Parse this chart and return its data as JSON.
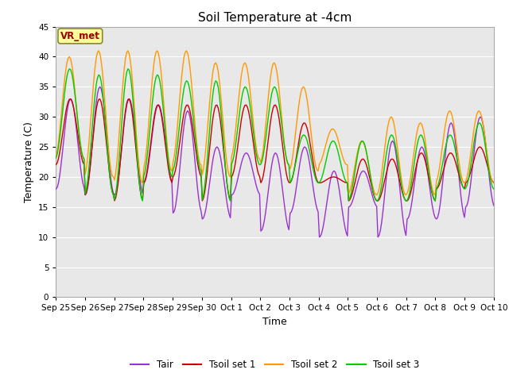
{
  "title": "Soil Temperature at -4cm",
  "xlabel": "Time",
  "ylabel": "Temperature (C)",
  "ylim": [
    0,
    45
  ],
  "yticks": [
    0,
    5,
    10,
    15,
    20,
    25,
    30,
    35,
    40,
    45
  ],
  "xtick_labels": [
    "Sep 25",
    "Sep 26",
    "Sep 27",
    "Sep 28",
    "Sep 29",
    "Sep 30",
    "Oct 1",
    "Oct 2",
    "Oct 3",
    "Oct 4",
    "Oct 5",
    "Oct 6",
    "Oct 7",
    "Oct 8",
    "Oct 9",
    "Oct 10"
  ],
  "fig_bg_color": "#ffffff",
  "plot_bg_color": "#e8e8e8",
  "grid_color": "#ffffff",
  "annotation_text": "VR_met",
  "annotation_bg": "#ffff99",
  "annotation_border": "#888833",
  "annotation_text_color": "#990000",
  "colors": {
    "Tair": "#9933cc",
    "Tsoil_set1": "#cc0000",
    "Tsoil_set2": "#ff9900",
    "Tsoil_set3": "#00cc00"
  },
  "legend_labels": [
    "Tair",
    "Tsoil set 1",
    "Tsoil set 2",
    "Tsoil set 3"
  ],
  "n_days": 15,
  "hours_per_day": 24,
  "tair_peaks": [
    33,
    35,
    33,
    32,
    31,
    25,
    24,
    24,
    25,
    21,
    21,
    26,
    25,
    29,
    30
  ],
  "tair_valleys": [
    18,
    17,
    17,
    19,
    14,
    13,
    17,
    11,
    14,
    10,
    15,
    10,
    13,
    13,
    15
  ],
  "tsoil1_peaks": [
    33,
    33,
    33,
    32,
    32,
    32,
    32,
    32,
    29,
    20,
    23,
    23,
    24,
    24,
    25
  ],
  "tsoil1_valleys": [
    22,
    17,
    16,
    19,
    20,
    16,
    20,
    19,
    19,
    19,
    16,
    16,
    16,
    18,
    19
  ],
  "tsoil2_peaks": [
    40,
    41,
    41,
    41,
    41,
    39,
    39,
    39,
    35,
    28,
    26,
    30,
    29,
    31,
    31
  ],
  "tsoil2_valleys": [
    23,
    20,
    19,
    21,
    22,
    20,
    23,
    22,
    21,
    22,
    17,
    17,
    17,
    19,
    19
  ],
  "tsoil3_peaks": [
    38,
    37,
    38,
    37,
    36,
    36,
    35,
    35,
    27,
    26,
    26,
    27,
    27,
    27,
    29
  ],
  "tsoil3_valleys": [
    23,
    17,
    16,
    20,
    21,
    16,
    22,
    22,
    19,
    19,
    16,
    16,
    16,
    18,
    18
  ],
  "tair_phase": -1.5707963,
  "tsoil1_phase": -1.4707963,
  "tsoil2_phase": -1.2707963,
  "tsoil3_phase": -1.3707963,
  "noise_seed": 42
}
